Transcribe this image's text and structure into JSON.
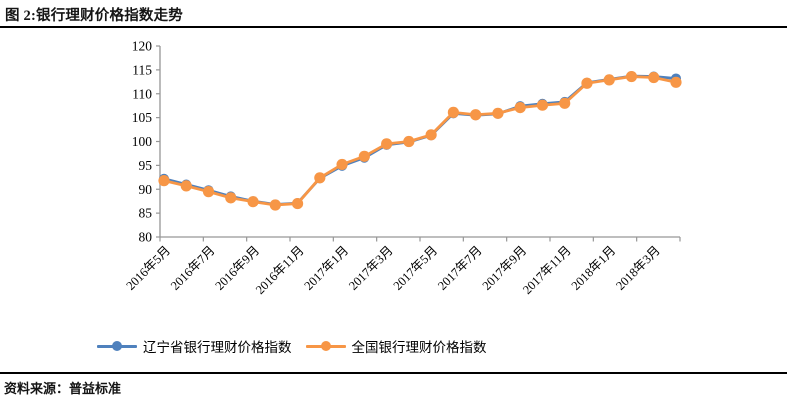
{
  "figure": {
    "title": "图 2:银行理财价格指数走势",
    "source": "资料来源：普益标准"
  },
  "chart_data": {
    "type": "line",
    "title": "图 2:银行理财价格指数走势",
    "categories": [
      "2016年5月",
      "2016年6月",
      "2016年7月",
      "2016年8月",
      "2016年9月",
      "2016年10月",
      "2016年11月",
      "2016年12月",
      "2017年1月",
      "2017年2月",
      "2017年3月",
      "2017年4月",
      "2017年5月",
      "2017年6月",
      "2017年7月",
      "2017年8月",
      "2017年9月",
      "2017年10月",
      "2017年11月",
      "2017年12月",
      "2018年1月",
      "2018年2月",
      "2018年3月",
      "2018年4月"
    ],
    "xticklabels": [
      "2016年5月",
      "2016年7月",
      "2016年9月",
      "2016年11月",
      "2017年1月",
      "2017年3月",
      "2017年5月",
      "2017年7月",
      "2017年9月",
      "2017年11月",
      "2018年1月",
      "2018年3月"
    ],
    "yticks": [
      80,
      85,
      90,
      95,
      100,
      105,
      110,
      115,
      120
    ],
    "ylim": [
      80,
      120
    ],
    "grid": false,
    "legend_position": "bottom",
    "axis_color": "#969696",
    "tick_label_color": "#000000",
    "series": [
      {
        "name": "辽宁省银行理财价格指数",
        "color": "#4F81BD",
        "values": [
          92.2,
          91.0,
          89.8,
          88.5,
          87.5,
          86.8,
          87.1,
          92.3,
          94.9,
          96.6,
          99.3,
          99.9,
          101.3,
          105.9,
          105.5,
          105.8,
          107.4,
          107.9,
          108.3,
          112.3,
          113.0,
          113.7,
          113.6,
          113.2
        ]
      },
      {
        "name": "全国银行理财价格指数",
        "color": "#F79646",
        "values": [
          91.8,
          90.7,
          89.5,
          88.2,
          87.4,
          86.7,
          87.0,
          92.4,
          95.2,
          96.9,
          99.5,
          100.0,
          101.4,
          106.1,
          105.6,
          105.9,
          107.1,
          107.6,
          108.0,
          112.2,
          112.9,
          113.6,
          113.4,
          112.4
        ]
      }
    ]
  }
}
